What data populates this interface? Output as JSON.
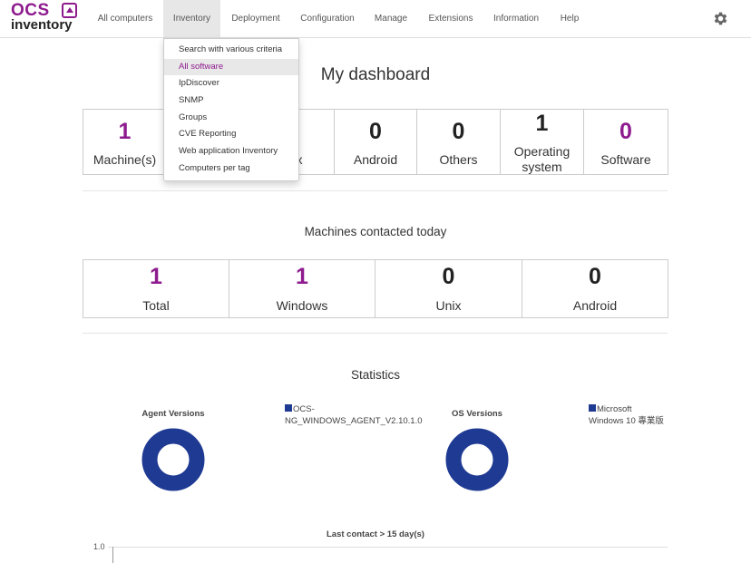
{
  "logo": {
    "top": "OCS",
    "bottom": "inventory"
  },
  "nav": {
    "items": [
      {
        "label": "All computers"
      },
      {
        "label": "Inventory"
      },
      {
        "label": "Deployment"
      },
      {
        "label": "Configuration"
      },
      {
        "label": "Manage"
      },
      {
        "label": "Extensions"
      },
      {
        "label": "Information"
      },
      {
        "label": "Help"
      }
    ],
    "active": "Inventory",
    "settings_icon": "gear-icon"
  },
  "inventory_menu": {
    "items": [
      {
        "label": "Search with various criteria"
      },
      {
        "label": "All software"
      },
      {
        "label": "IpDiscover"
      },
      {
        "label": "SNMP"
      },
      {
        "label": "Groups"
      },
      {
        "label": "CVE Reporting"
      },
      {
        "label": "Web application Inventory"
      },
      {
        "label": "Computers per tag"
      }
    ],
    "highlighted": "All software"
  },
  "dashboard": {
    "title": "My dashboard",
    "stats": [
      {
        "value": "1",
        "label": "Machine(s)"
      },
      {
        "value": "",
        "label": ""
      },
      {
        "value": "",
        "label": "x"
      },
      {
        "value": "0",
        "label": "Android"
      },
      {
        "value": "0",
        "label": "Others"
      },
      {
        "value": "1",
        "label": "Operating system"
      },
      {
        "value": "0",
        "label": "Software"
      }
    ]
  },
  "contacted": {
    "title": "Machines contacted today",
    "stats": [
      {
        "value": "1",
        "label": "Total"
      },
      {
        "value": "1",
        "label": "Windows"
      },
      {
        "value": "0",
        "label": "Unix"
      },
      {
        "value": "0",
        "label": "Android"
      }
    ]
  },
  "statistics": {
    "title": "Statistics",
    "agent_chart": {
      "title": "Agent Versions",
      "legend": "OCS-NG_WINDOWS_AGENT_V2.10.1.0",
      "legend_line1": "OCS-",
      "legend_line2": "NG_WINDOWS_AGENT_V2.10.1.0"
    },
    "os_chart": {
      "title": "OS Versions",
      "legend": "Microsoft Windows 10 專業版",
      "legend_line1": "Microsoft",
      "legend_line2": "Windows 10 專業版"
    },
    "last_contact": {
      "title": "Last contact > 15 day(s)",
      "y_tick": "1.0"
    }
  },
  "colors": {
    "accent": "#8e1b8e",
    "chart_blue": "#1f3a93"
  },
  "chart_data": [
    {
      "type": "pie",
      "title": "Agent Versions",
      "categories": [
        "OCS-NG_WINDOWS_AGENT_V2.10.1.0"
      ],
      "values": [
        1
      ],
      "legend": "top-right"
    },
    {
      "type": "pie",
      "title": "OS Versions",
      "categories": [
        "Microsoft Windows 10 專業版"
      ],
      "values": [
        1
      ],
      "legend": "top-right"
    },
    {
      "type": "bar",
      "title": "Last contact > 15 day(s)",
      "ylim": [
        0,
        1.0
      ],
      "categories": [],
      "values": []
    }
  ]
}
